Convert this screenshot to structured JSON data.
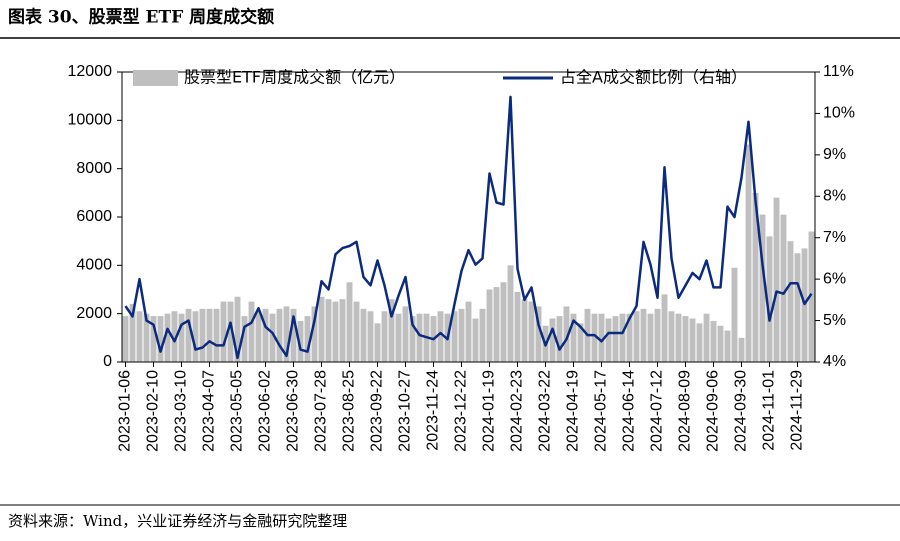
{
  "title": "图表 30、股票型 ETF 周度成交额",
  "source": "资料来源：Wind，兴业证券经济与金融研究院整理",
  "chart_data": {
    "type": "bar-line",
    "categories": [
      "2023-01-06",
      null,
      null,
      null,
      "2023-02-10",
      null,
      null,
      null,
      "2023-03-10",
      null,
      null,
      null,
      "2023-04-07",
      null,
      null,
      null,
      "2023-05-05",
      null,
      null,
      null,
      "2023-06-02",
      null,
      null,
      null,
      "2023-06-30",
      null,
      null,
      null,
      "2023-07-28",
      null,
      null,
      null,
      "2023-08-25",
      null,
      null,
      null,
      "2023-09-22",
      null,
      null,
      null,
      "2023-10-27",
      null,
      null,
      null,
      "2023-11-24",
      null,
      null,
      null,
      "2023-12-22",
      null,
      null,
      null,
      "2024-01-19",
      null,
      null,
      null,
      "2024-02-23",
      null,
      null,
      null,
      "2024-03-22",
      null,
      null,
      null,
      "2024-04-19",
      null,
      null,
      null,
      "2024-05-17",
      null,
      null,
      null,
      "2024-06-14",
      null,
      null,
      null,
      "2024-07-12",
      null,
      null,
      null,
      "2024-08-09",
      null,
      null,
      null,
      "2024-09-06",
      null,
      null,
      null,
      "2024-09-30",
      null,
      null,
      null,
      "2024-11-01",
      null,
      null,
      null,
      "2024-11-29",
      null,
      null
    ],
    "series": [
      {
        "name": "股票型ETF周度成交额（亿元）",
        "type": "bar",
        "color": "#bfbfbf",
        "values": [
          1900,
          2400,
          2100,
          2000,
          1900,
          1900,
          2000,
          2100,
          2000,
          2200,
          2100,
          2200,
          2200,
          2200,
          2500,
          2500,
          2700,
          1900,
          2500,
          2100,
          2200,
          2000,
          2200,
          2300,
          2200,
          1700,
          1900,
          2300,
          2700,
          2600,
          2500,
          2600,
          3300,
          2500,
          2200,
          2100,
          1600,
          2100,
          2600,
          2000,
          2300,
          1900,
          2000,
          2000,
          1900,
          2100,
          2000,
          2100,
          2200,
          2500,
          1800,
          2200,
          3000,
          3100,
          3300,
          4000,
          2900,
          2600,
          2500,
          2300,
          1500,
          1800,
          1900,
          2300,
          2000,
          1600,
          2200,
          2000,
          2000,
          1800,
          1900,
          2000,
          2000,
          2100,
          2200,
          2000,
          2200,
          2800,
          2100,
          2000,
          1900,
          1800,
          1600,
          2000,
          1700,
          1500,
          1300,
          3900,
          1000,
          9000,
          7000,
          6100,
          5200,
          6800,
          6100,
          5000,
          4500,
          4700,
          5400
        ]
      },
      {
        "name": "占全A成交额比例（右轴）",
        "type": "line",
        "axis": "y2",
        "color": "#0d2b7e",
        "values": [
          5.35,
          5.1,
          6.0,
          5.0,
          4.9,
          4.25,
          4.8,
          4.5,
          4.9,
          5.0,
          4.3,
          4.35,
          4.5,
          4.4,
          4.4,
          4.95,
          4.1,
          4.85,
          4.95,
          5.3,
          4.85,
          4.7,
          4.4,
          4.15,
          5.1,
          4.3,
          4.25,
          5.0,
          5.95,
          5.75,
          6.6,
          6.75,
          6.8,
          6.9,
          6.05,
          5.85,
          6.45,
          5.85,
          5.1,
          5.6,
          6.05,
          4.9,
          4.65,
          4.6,
          4.55,
          4.7,
          4.55,
          5.4,
          6.2,
          6.7,
          6.35,
          6.5,
          8.55,
          7.85,
          7.8,
          10.4,
          6.25,
          5.5,
          5.8,
          4.9,
          4.4,
          4.8,
          4.3,
          4.55,
          5.0,
          4.85,
          4.65,
          4.65,
          4.5,
          4.7,
          4.7,
          4.7,
          5.05,
          5.35,
          6.9,
          6.35,
          5.55,
          8.7,
          6.5,
          5.55,
          5.85,
          6.15,
          6.0,
          6.45,
          5.8,
          5.8,
          7.75,
          7.5,
          8.45,
          9.8,
          7.9,
          6.35,
          5.0,
          5.7,
          5.65,
          5.9,
          5.9,
          5.4,
          5.65
        ]
      }
    ],
    "ylim": [
      0,
      12000
    ],
    "yticks": [
      0,
      2000,
      4000,
      6000,
      8000,
      10000,
      12000
    ],
    "y2lim": [
      4,
      11
    ],
    "y2ticks": [
      {
        "value": 4,
        "label": "4%"
      },
      {
        "value": 5,
        "label": "5%"
      },
      {
        "value": 6,
        "label": "6%"
      },
      {
        "value": 7,
        "label": "7%"
      },
      {
        "value": 8,
        "label": "8%"
      },
      {
        "value": 9,
        "label": "9%"
      },
      {
        "value": 10,
        "label": "10%"
      },
      {
        "value": 11,
        "label": "11%"
      }
    ]
  }
}
